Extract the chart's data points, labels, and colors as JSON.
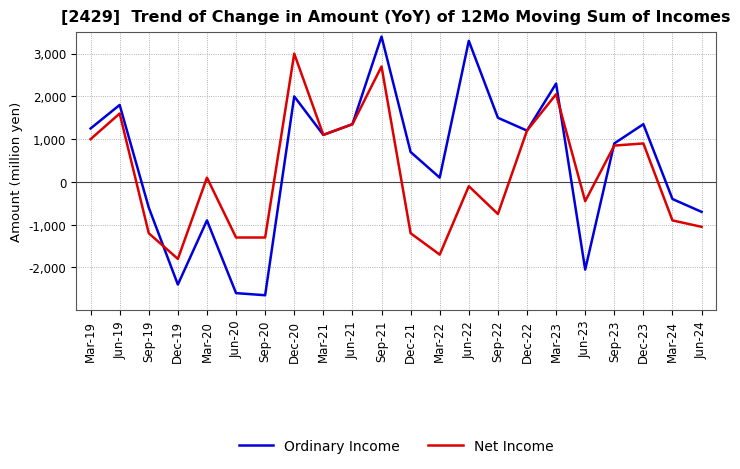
{
  "title": "[2429]  Trend of Change in Amount (YoY) of 12Mo Moving Sum of Incomes",
  "ylabel": "Amount (million yen)",
  "labels": [
    "Mar-19",
    "Jun-19",
    "Sep-19",
    "Dec-19",
    "Mar-20",
    "Jun-20",
    "Sep-20",
    "Dec-20",
    "Mar-21",
    "Jun-21",
    "Sep-21",
    "Dec-21",
    "Mar-22",
    "Jun-22",
    "Sep-22",
    "Dec-22",
    "Mar-23",
    "Jun-23",
    "Sep-23",
    "Dec-23",
    "Mar-24",
    "Jun-24"
  ],
  "ordinary_income": [
    1250,
    1800,
    -600,
    -2400,
    -900,
    -2600,
    -2650,
    2000,
    1100,
    1350,
    3400,
    700,
    100,
    3300,
    1500,
    1200,
    2300,
    -2050,
    900,
    1350,
    -400,
    -700
  ],
  "net_income": [
    1000,
    1600,
    -1200,
    -1800,
    100,
    -1300,
    -1300,
    3000,
    1100,
    1350,
    2700,
    -1200,
    -1700,
    -100,
    -750,
    1200,
    2050,
    -450,
    850,
    900,
    -900,
    -1050
  ],
  "ordinary_color": "#0000dd",
  "net_color": "#dd0000",
  "ylim": [
    -3000,
    3500
  ],
  "yticks": [
    -2000,
    -1000,
    0,
    1000,
    2000,
    3000
  ],
  "background_color": "#ffffff",
  "grid_color": "#999999",
  "title_fontsize": 11.5,
  "axis_label_fontsize": 9.5,
  "tick_fontsize": 8.5,
  "legend_fontsize": 10,
  "linewidth": 1.8
}
